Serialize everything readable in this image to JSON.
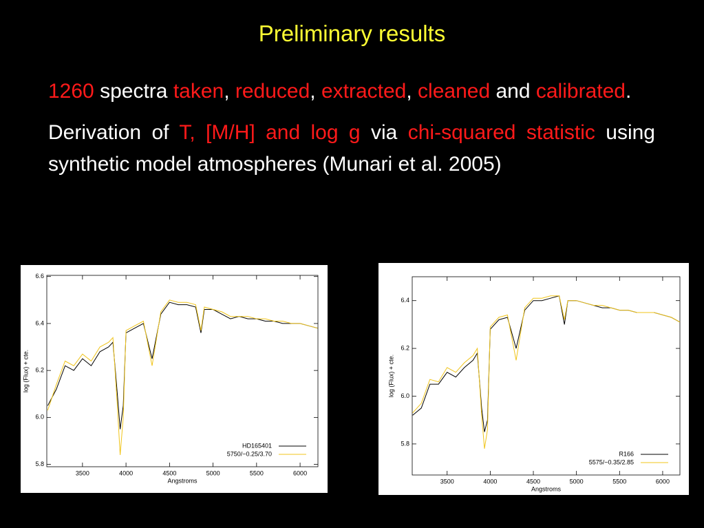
{
  "slide": {
    "title": "Preliminary results",
    "paragraphs": [
      [
        {
          "text": "1260",
          "color": "#ff1a1a"
        },
        {
          "text": " spectra "
        },
        {
          "text": "taken",
          "color": "#ff1a1a"
        },
        {
          "text": ", "
        },
        {
          "text": "reduced",
          "color": "#ff1a1a"
        },
        {
          "text": ", "
        },
        {
          "text": "extracted",
          "color": "#ff1a1a"
        },
        {
          "text": ", "
        },
        {
          "text": "cleaned",
          "color": "#ff1a1a"
        },
        {
          "text": " and "
        },
        {
          "text": "calibrated",
          "color": "#ff1a1a"
        },
        {
          "text": "."
        }
      ],
      [
        {
          "text": "Derivation of "
        },
        {
          "text": "T, [M/H] and log g",
          "color": "#ff1a1a"
        },
        {
          "text": " via "
        },
        {
          "text": "chi-squared statistic",
          "color": "#ff1a1a"
        },
        {
          "text": " using synthetic model atmospheres (Munari et al. 2005)"
        }
      ]
    ]
  },
  "chart_data": [
    {
      "type": "line",
      "xlabel": "Angstroms",
      "ylabel": "log (Flux) + cte.",
      "legend": "lower right",
      "x": [
        3100,
        3200,
        3300,
        3400,
        3500,
        3600,
        3700,
        3800,
        3850,
        3900,
        3933,
        3968,
        4000,
        4100,
        4200,
        4300,
        4400,
        4500,
        4600,
        4700,
        4800,
        4861,
        4900,
        5000,
        5100,
        5200,
        5300,
        5400,
        5500,
        5600,
        5700,
        5800,
        5900,
        6000,
        6100,
        6200
      ],
      "series": [
        {
          "name": "HD165401",
          "color": "#000000",
          "values": [
            6.05,
            6.12,
            6.22,
            6.2,
            6.25,
            6.22,
            6.28,
            6.3,
            6.32,
            6.1,
            5.95,
            6.05,
            6.36,
            6.38,
            6.4,
            6.25,
            6.44,
            6.49,
            6.48,
            6.48,
            6.47,
            6.36,
            6.46,
            6.46,
            6.44,
            6.42,
            6.43,
            6.42,
            6.42,
            6.41,
            6.41,
            6.4,
            6.4,
            6.4,
            6.39,
            6.38
          ]
        },
        {
          "name": "5750/−0.25/3.70",
          "color": "#f0c419",
          "values": [
            6.03,
            6.14,
            6.24,
            6.22,
            6.27,
            6.24,
            6.3,
            6.32,
            6.34,
            6.05,
            5.84,
            6.0,
            6.37,
            6.39,
            6.41,
            6.22,
            6.45,
            6.5,
            6.49,
            6.49,
            6.48,
            6.37,
            6.47,
            6.46,
            6.45,
            6.43,
            6.43,
            6.43,
            6.42,
            6.42,
            6.41,
            6.41,
            6.4,
            6.4,
            6.39,
            6.38
          ]
        }
      ],
      "xlim": [
        3090,
        6205
      ],
      "xticks": [
        3500,
        4000,
        4500,
        5000,
        5500,
        6000
      ],
      "ylim": [
        5.79,
        6.605
      ],
      "yticks": [
        5.8,
        {
          "value": 6,
          "label": "6.0"
        },
        6.2,
        6.4,
        6.6
      ]
    },
    {
      "type": "line",
      "xlabel": "Angstroms",
      "ylabel": "log (Flux) + cte.",
      "legend": "lower right",
      "x": [
        3100,
        3200,
        3300,
        3400,
        3500,
        3600,
        3700,
        3800,
        3850,
        3900,
        3933,
        3968,
        4000,
        4100,
        4200,
        4300,
        4400,
        4500,
        4600,
        4700,
        4800,
        4861,
        4900,
        5000,
        5100,
        5200,
        5300,
        5400,
        5500,
        5600,
        5700,
        5800,
        5900,
        6000,
        6100,
        6200
      ],
      "series": [
        {
          "name": "R166",
          "color": "#000000",
          "values": [
            5.92,
            5.95,
            6.05,
            6.05,
            6.1,
            6.08,
            6.12,
            6.15,
            6.18,
            5.95,
            5.85,
            5.9,
            6.28,
            6.32,
            6.33,
            6.2,
            6.36,
            6.4,
            6.4,
            6.41,
            6.42,
            6.3,
            6.4,
            6.4,
            6.39,
            6.38,
            6.37,
            6.37,
            6.36,
            6.36,
            6.35,
            6.35,
            6.35,
            6.34,
            6.33,
            6.31
          ]
        },
        {
          "name": "5575/−0.35/2.85",
          "color": "#f0c419",
          "values": [
            5.93,
            5.97,
            6.07,
            6.06,
            6.12,
            6.1,
            6.14,
            6.17,
            6.2,
            5.92,
            5.78,
            5.86,
            6.29,
            6.33,
            6.34,
            6.15,
            6.37,
            6.41,
            6.41,
            6.42,
            6.42,
            6.32,
            6.4,
            6.4,
            6.39,
            6.38,
            6.38,
            6.37,
            6.36,
            6.36,
            6.35,
            6.35,
            6.35,
            6.34,
            6.33,
            6.31
          ]
        }
      ],
      "xlim": [
        3095,
        6200
      ],
      "xticks": [
        3500,
        4000,
        4500,
        5000,
        5500,
        6000
      ],
      "ylim": [
        5.67,
        6.5
      ],
      "yticks": [
        5.8,
        {
          "value": 6,
          "label": "6.0"
        },
        6.2,
        6.4
      ]
    }
  ]
}
